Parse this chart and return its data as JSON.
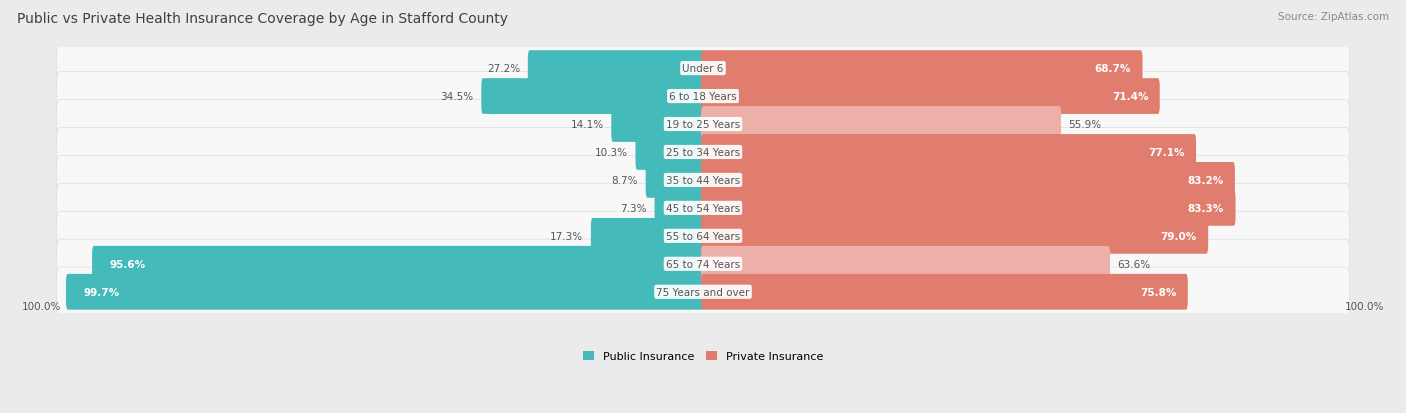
{
  "title": "Public vs Private Health Insurance Coverage by Age in Stafford County",
  "source": "Source: ZipAtlas.com",
  "categories": [
    "Under 6",
    "6 to 18 Years",
    "19 to 25 Years",
    "25 to 34 Years",
    "35 to 44 Years",
    "45 to 54 Years",
    "55 to 64 Years",
    "65 to 74 Years",
    "75 Years and over"
  ],
  "public_values": [
    27.2,
    34.5,
    14.1,
    10.3,
    8.7,
    7.3,
    17.3,
    95.6,
    99.7
  ],
  "private_values": [
    68.7,
    71.4,
    55.9,
    77.1,
    83.2,
    83.3,
    79.0,
    63.6,
    75.8
  ],
  "public_color": "#45BABA",
  "private_color_strong": "#E07D6E",
  "private_color_light": "#EDB0A8",
  "bg_color": "#EBEBEB",
  "bar_bg_color": "#F8F8F8",
  "bar_bg_border": "#DDDDDD",
  "label_color_dark": "#555555",
  "label_color_white": "#FFFFFF",
  "axis_label": "100.0%",
  "legend_public": "Public Insurance",
  "legend_private": "Private Insurance",
  "title_fontsize": 10,
  "source_fontsize": 7.5,
  "bar_label_fontsize": 7.5,
  "category_fontsize": 7.5,
  "axis_fontsize": 7.5,
  "private_strong_threshold": 65,
  "public_strong_threshold": 40
}
